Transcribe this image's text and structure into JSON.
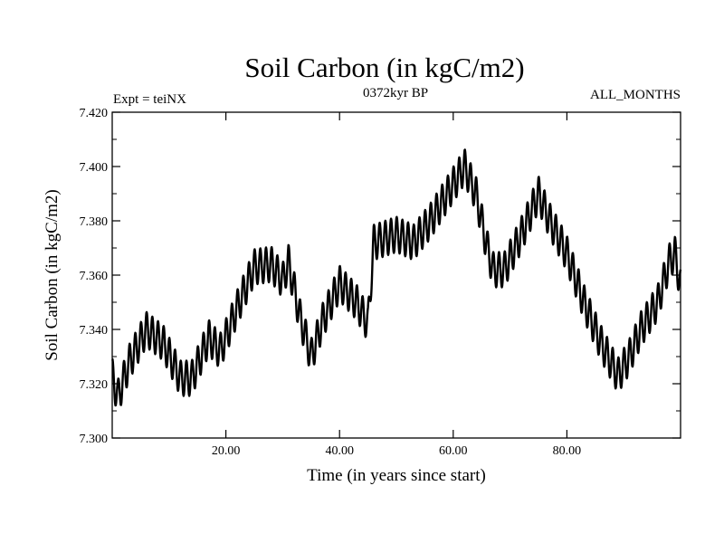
{
  "chart_data": {
    "type": "line",
    "title": "Soil Carbon (in kgC/m2)",
    "subtitle_left": "Expt = teiNX",
    "subtitle_center": "0372kyr BP",
    "subtitle_right": "ALL_MONTHS",
    "xlabel": "Time (in years since start)",
    "ylabel": "Soil Carbon (in kgC/m2)",
    "xlim": [
      0.0,
      100.0
    ],
    "ylim": [
      7.3,
      7.42
    ],
    "x_ticks": [
      20,
      40,
      60,
      80
    ],
    "x_tick_labels": [
      "20.00",
      "40.00",
      "60.00",
      "80.00"
    ],
    "y_ticks": [
      7.3,
      7.32,
      7.34,
      7.36,
      7.38,
      7.4,
      7.42
    ],
    "y_tick_labels": [
      "7.300",
      "7.320",
      "7.340",
      "7.360",
      "7.380",
      "7.400",
      "7.420"
    ],
    "series": [
      {
        "name": "Soil Carbon",
        "color": "#000000",
        "seasonal_amplitude": 0.0065,
        "seasonal_period_years": 1.0,
        "trend_x": [
          0.0,
          1.0,
          3.0,
          6.0,
          9.0,
          12.0,
          14.0,
          17.0,
          19.0,
          22.0,
          25.0,
          28.0,
          30.0,
          31.0,
          33.0,
          35.0,
          37.0,
          40.0,
          43.0,
          45.0,
          46.0,
          50.0,
          53.0,
          56.0,
          59.0,
          62.0,
          64.0,
          66.0,
          67.0,
          69.0,
          72.0,
          75.0,
          77.0,
          80.0,
          83.0,
          86.0,
          89.0,
          91.0,
          93.0,
          96.0,
          98.0,
          99.0,
          100.0
        ],
        "trend_y": [
          7.323,
          7.315,
          7.328,
          7.34,
          7.335,
          7.322,
          7.322,
          7.337,
          7.332,
          7.348,
          7.363,
          7.364,
          7.358,
          7.365,
          7.345,
          7.33,
          7.343,
          7.357,
          7.35,
          7.342,
          7.372,
          7.375,
          7.372,
          7.38,
          7.39,
          7.4,
          7.39,
          7.37,
          7.362,
          7.362,
          7.375,
          7.39,
          7.38,
          7.368,
          7.35,
          7.335,
          7.323,
          7.33,
          7.34,
          7.35,
          7.365,
          7.368,
          7.356
        ]
      }
    ]
  }
}
